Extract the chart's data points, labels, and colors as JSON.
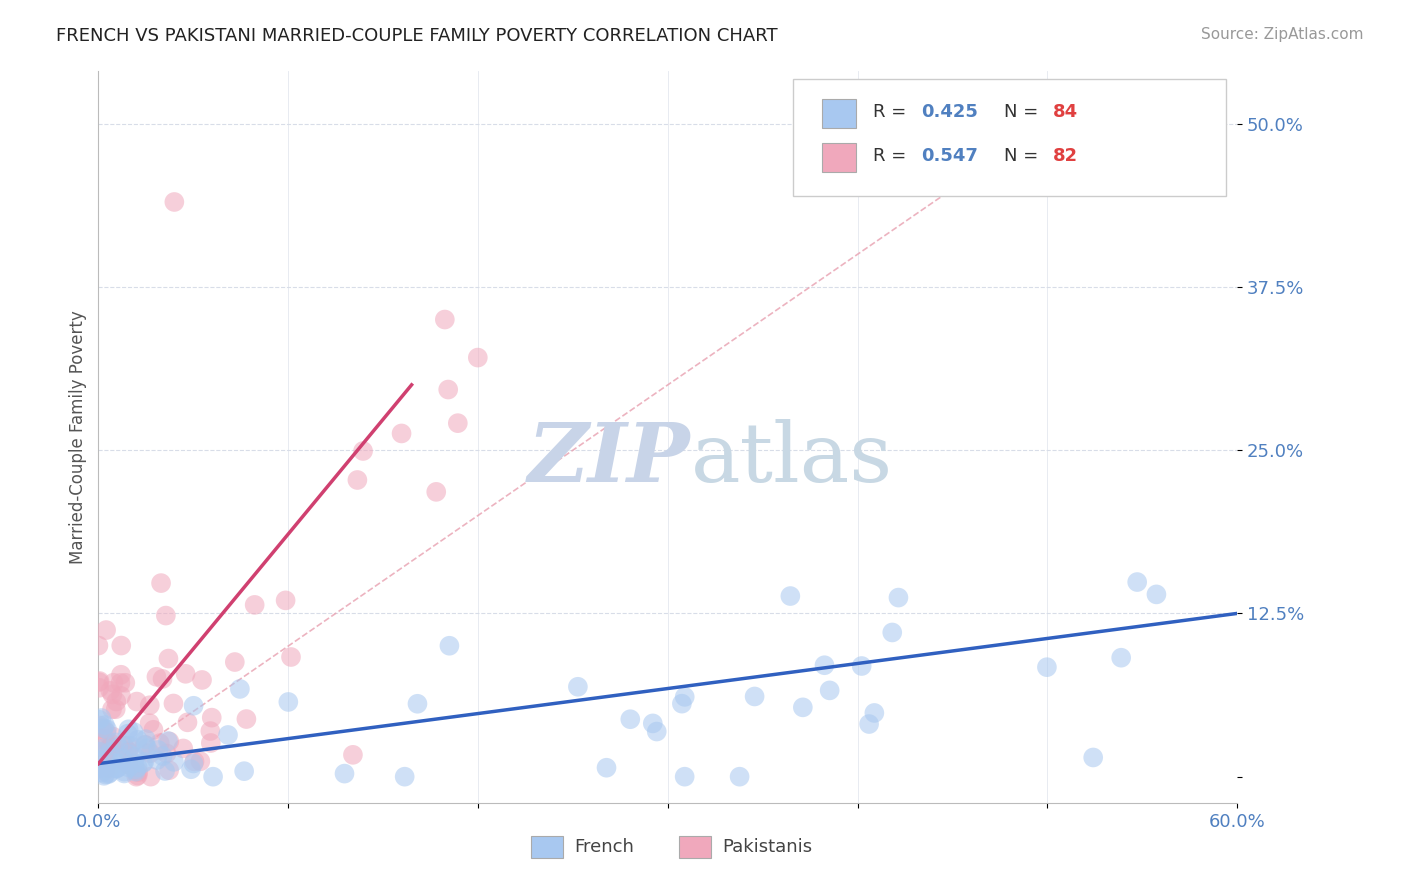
{
  "title": "FRENCH VS PAKISTANI MARRIED-COUPLE FAMILY POVERTY CORRELATION CHART",
  "source": "Source: ZipAtlas.com",
  "ylabel": "Married-Couple Family Poverty",
  "legend_french": "French",
  "legend_pakistani": "Pakistanis",
  "r_french": 0.425,
  "n_french": 84,
  "r_pakistani": 0.547,
  "n_pakistani": 82,
  "x_min": 0.0,
  "x_max": 0.6,
  "y_min": -0.02,
  "y_max": 0.54,
  "french_color": "#a8c8f0",
  "pakistani_color": "#f0a8bc",
  "french_line_color": "#3060c0",
  "pakistani_line_color": "#d04070",
  "diag_color": "#e8a0b0",
  "grid_color": "#d8dde8",
  "tick_color": "#5080c0",
  "watermark_zip_color": "#c8d4e8",
  "watermark_atlas_color": "#c8d8e4"
}
